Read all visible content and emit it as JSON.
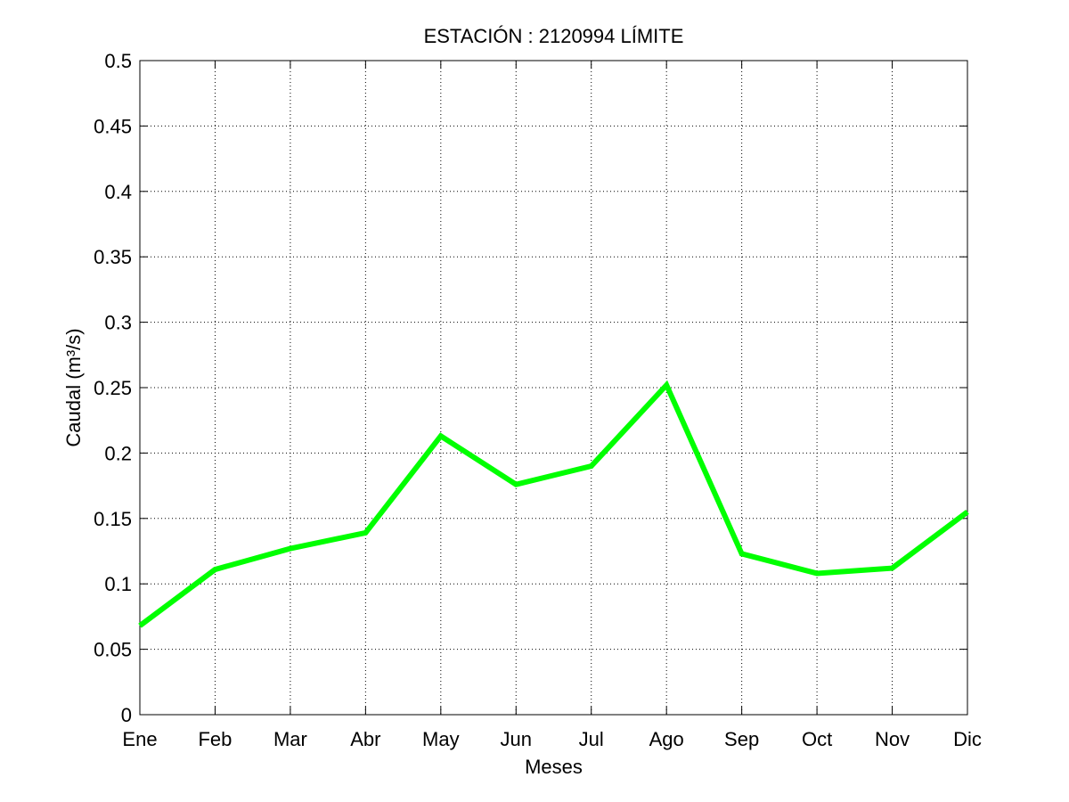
{
  "chart_data": {
    "type": "line",
    "title": "ESTACIÓN :  2120994  LÍMITE",
    "xlabel": "Meses",
    "ylabel": "Caudal (m³/s)",
    "categories": [
      "Ene",
      "Feb",
      "Mar",
      "Abr",
      "May",
      "Jun",
      "Jul",
      "Ago",
      "Sep",
      "Oct",
      "Nov",
      "Dic"
    ],
    "series": [
      {
        "values": [
          0.068,
          0.111,
          0.127,
          0.139,
          0.213,
          0.176,
          0.19,
          0.252,
          0.123,
          0.108,
          0.112,
          0.155
        ],
        "color": "#00ff00"
      }
    ],
    "ylim": [
      0,
      0.5
    ],
    "yticks": [
      0,
      0.05,
      0.1,
      0.15,
      0.2,
      0.25,
      0.3,
      0.35,
      0.4,
      0.45,
      0.5
    ],
    "ytick_labels": [
      "0",
      "0.05",
      "0.1",
      "0.15",
      "0.2",
      "0.25",
      "0.3",
      "0.35",
      "0.4",
      "0.45",
      "0.5"
    ],
    "grid": true,
    "grid_style": "dotted",
    "legend": "none"
  }
}
